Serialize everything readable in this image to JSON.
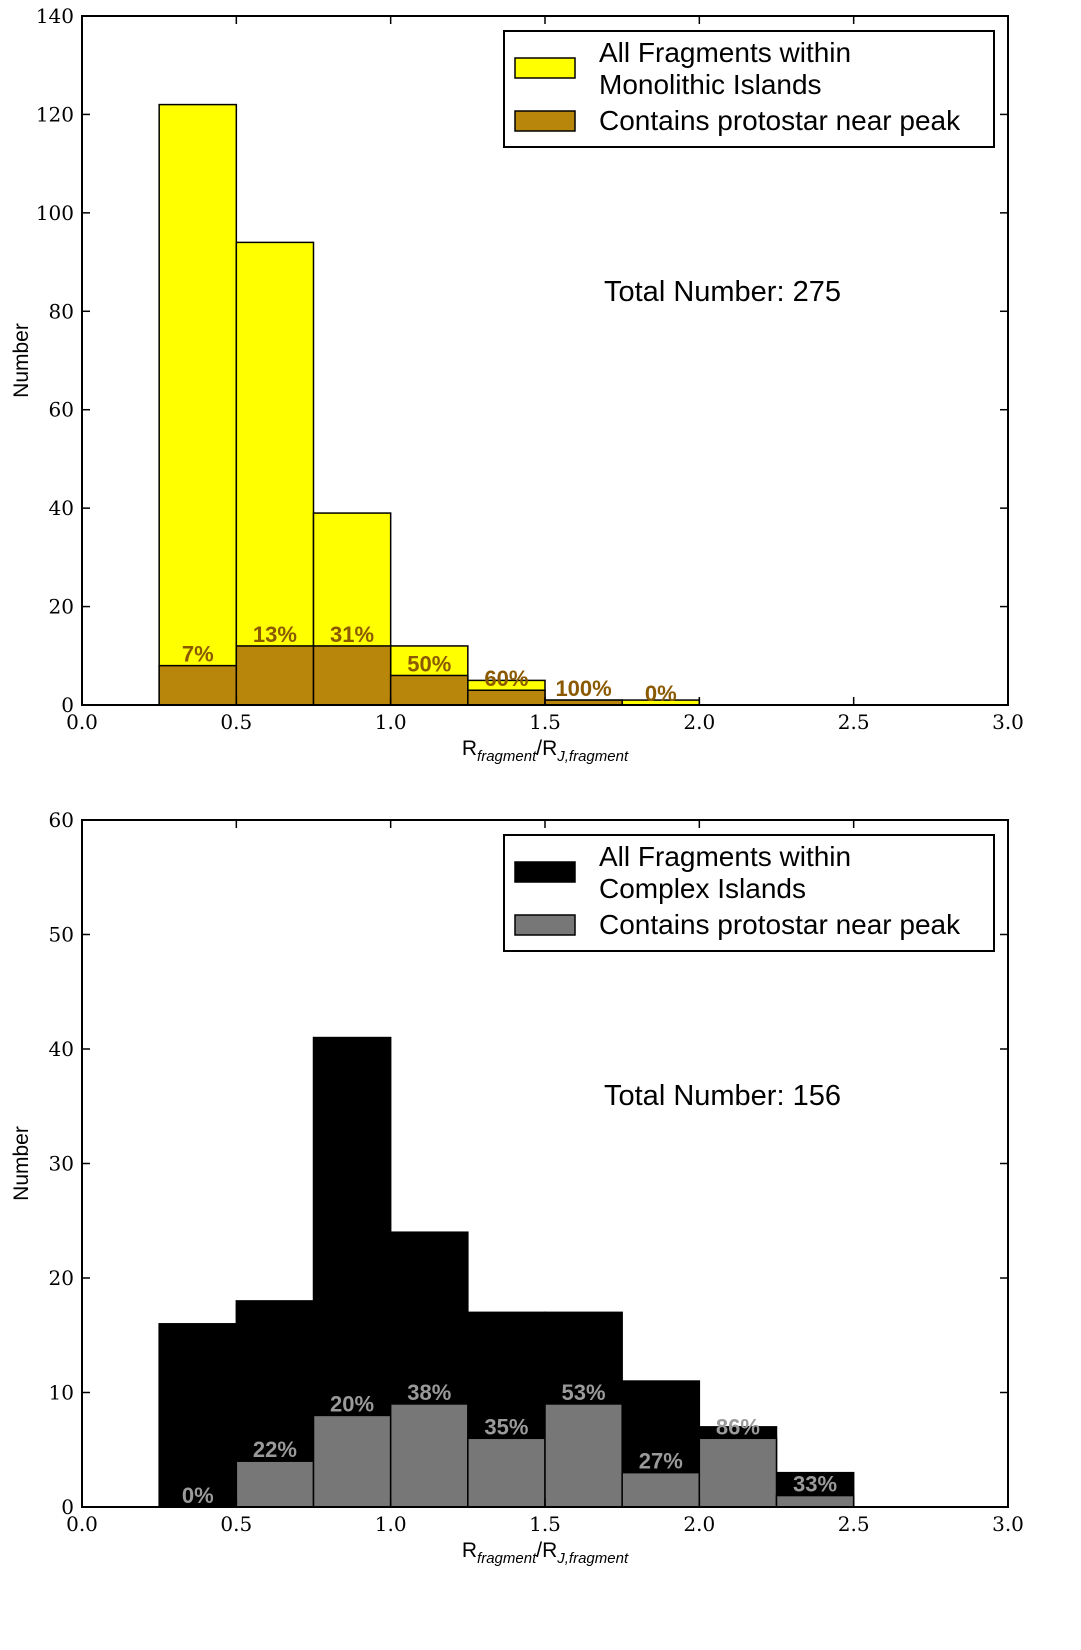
{
  "chart_data": [
    {
      "type": "bar",
      "x_bin_edges": [
        0.25,
        0.5,
        0.75,
        1.0,
        1.25,
        1.5,
        1.75,
        2.0
      ],
      "series": [
        {
          "name": "All Fragments within\nMonolithic Islands",
          "values": [
            122,
            94,
            39,
            12,
            5,
            1,
            1
          ],
          "color": "#ffff00"
        },
        {
          "name": "Contains protostar near peak",
          "values": [
            8,
            12,
            12,
            6,
            3,
            1,
            0
          ],
          "color": "#b8860b"
        }
      ],
      "bar_labels": [
        "7%",
        "13%",
        "31%",
        "50%",
        "60%",
        "100%",
        "0%"
      ],
      "label_color": "#8b5a00",
      "annotation": "Total Number: 275",
      "xlabel": "R_fragment/R_J,fragment",
      "xlabel_main": "R",
      "xlabel_sub1": "fragment",
      "xlabel_sep": "/R",
      "xlabel_sub2": "J,fragment",
      "ylabel": "Number",
      "xlim": [
        0,
        3
      ],
      "ylim": [
        0,
        140
      ],
      "xticks": [
        "0.0",
        "0.5",
        "1.0",
        "1.5",
        "2.0",
        "2.5",
        "3.0"
      ],
      "yticks": [
        "0",
        "20",
        "40",
        "60",
        "80",
        "100",
        "120",
        "140"
      ],
      "grid": false,
      "legend_placement": "top-right"
    },
    {
      "type": "bar",
      "x_bin_edges": [
        0.25,
        0.5,
        0.75,
        1.0,
        1.25,
        1.5,
        1.75,
        2.0,
        2.25,
        2.5
      ],
      "series": [
        {
          "name": "All Fragments within\nComplex Islands",
          "values": [
            16,
            18,
            41,
            24,
            17,
            17,
            11,
            7,
            3
          ],
          "color": "#000000"
        },
        {
          "name": "Contains protostar near peak",
          "values": [
            0,
            4,
            8,
            9,
            6,
            9,
            3,
            6,
            1
          ],
          "color": "#777777"
        }
      ],
      "bar_labels": [
        "0%",
        "22%",
        "20%",
        "38%",
        "35%",
        "53%",
        "27%",
        "86%",
        "33%"
      ],
      "label_color": "#9a9a9a",
      "annotation": "Total Number: 156",
      "xlabel": "R_fragment/R_J,fragment",
      "xlabel_main": "R",
      "xlabel_sub1": "fragment",
      "xlabel_sep": "/R",
      "xlabel_sub2": "J,fragment",
      "ylabel": "Number",
      "xlim": [
        0,
        3
      ],
      "ylim": [
        0,
        60
      ],
      "xticks": [
        "0.0",
        "0.5",
        "1.0",
        "1.5",
        "2.0",
        "2.5",
        "3.0"
      ],
      "yticks": [
        "0",
        "10",
        "20",
        "30",
        "40",
        "50",
        "60"
      ],
      "grid": false,
      "legend_placement": "top-right"
    }
  ]
}
